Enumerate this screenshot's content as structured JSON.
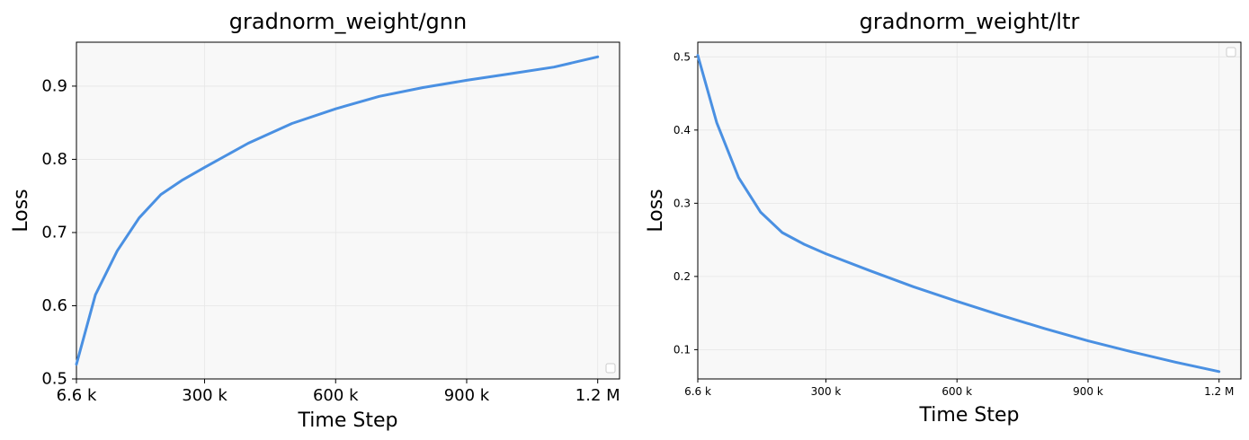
{
  "chart_data": [
    {
      "type": "line",
      "title": "gradnorm_weight/gnn",
      "xlabel": "Time Step",
      "ylabel": "Loss",
      "xlim": [
        6600,
        1250000
      ],
      "ylim": [
        0.5,
        0.96
      ],
      "xticks": [
        6600,
        300000,
        600000,
        900000,
        1200000
      ],
      "xtick_labels": [
        "6.6 k",
        "300 k",
        "600 k",
        "900 k",
        "1.2 M"
      ],
      "yticks": [
        0.5,
        0.6,
        0.7,
        0.8,
        0.9
      ],
      "ytick_labels": [
        "0.5",
        "0.6",
        "0.7",
        "0.8",
        "0.9"
      ],
      "grid": true,
      "legend": "lower-right (empty)",
      "color": "#4a90e2",
      "series": [
        {
          "x": [
            6600,
            50000,
            100000,
            150000,
            200000,
            250000,
            300000,
            400000,
            500000,
            600000,
            700000,
            800000,
            900000,
            1000000,
            1100000,
            1200000
          ],
          "y": [
            0.52,
            0.615,
            0.675,
            0.72,
            0.752,
            0.772,
            0.789,
            0.822,
            0.849,
            0.869,
            0.886,
            0.898,
            0.908,
            0.917,
            0.926,
            0.94
          ]
        }
      ]
    },
    {
      "type": "line",
      "title": "gradnorm_weight/ltr",
      "xlabel": "Time Step",
      "ylabel": "Loss",
      "xlim": [
        6600,
        1250000
      ],
      "ylim": [
        0.06,
        0.52
      ],
      "xticks": [
        6600,
        300000,
        600000,
        900000,
        1200000
      ],
      "xtick_labels": [
        "6.6 k",
        "300 k",
        "600 k",
        "900 k",
        "1.2 M"
      ],
      "yticks": [
        0.1,
        0.2,
        0.3,
        0.4,
        0.5
      ],
      "ytick_labels": [
        "0.1",
        "0.2",
        "0.3",
        "0.4",
        "0.5"
      ],
      "grid": true,
      "legend": "upper-right (empty)",
      "color": "#4a90e2",
      "series": [
        {
          "x": [
            6600,
            50000,
            100000,
            150000,
            200000,
            250000,
            300000,
            400000,
            500000,
            600000,
            700000,
            800000,
            900000,
            1000000,
            1100000,
            1200000
          ],
          "y": [
            0.502,
            0.41,
            0.335,
            0.288,
            0.26,
            0.244,
            0.231,
            0.208,
            0.186,
            0.166,
            0.147,
            0.129,
            0.112,
            0.097,
            0.083,
            0.07
          ]
        }
      ]
    }
  ]
}
